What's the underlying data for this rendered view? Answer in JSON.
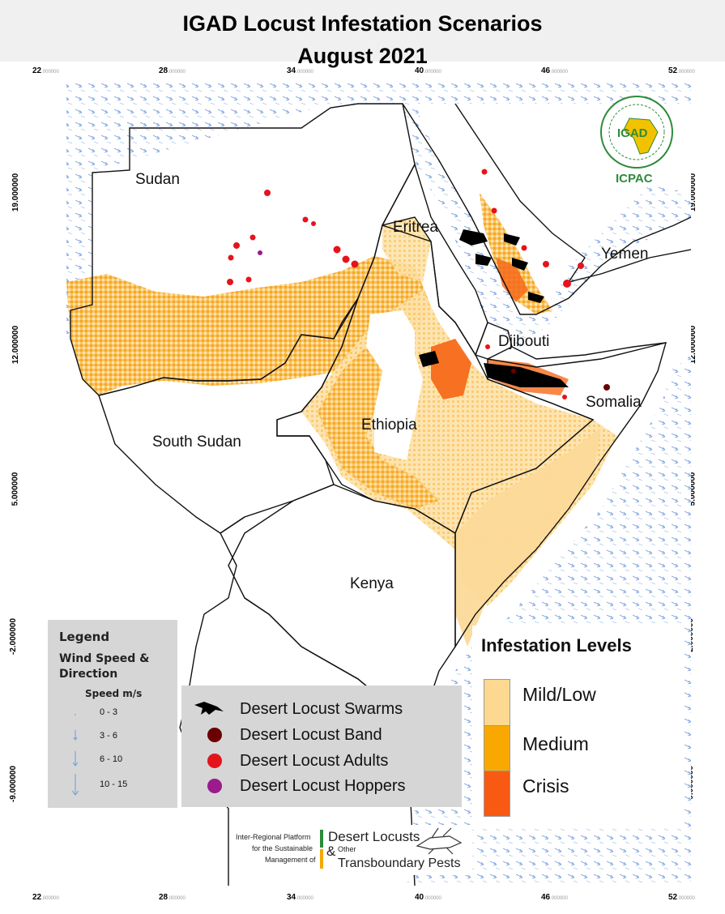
{
  "title": {
    "line1": "IGAD Locust Infestation Scenarios",
    "line2": "August 2021"
  },
  "axes": {
    "x_ticks": [
      "22",
      "28",
      "34",
      "40",
      "46",
      "52"
    ],
    "x_tick_suffix": ".000000",
    "y_ticks": [
      "19",
      "12",
      "5",
      "-2",
      "-9"
    ],
    "y_tick_suffix": ".000000"
  },
  "countries": [
    "Sudan",
    "Eritrea",
    "Yemen",
    "Djibouti",
    "Somalia",
    "Ethiopia",
    "South Sudan",
    "Kenya"
  ],
  "legend_wind": {
    "title": "Legend",
    "subtitle_line1": "Wind Speed &",
    "subtitle_line2": "Direction",
    "speed_label": "Speed m/s",
    "ranges": [
      "0 - 3",
      "3 - 6",
      "6 - 10",
      "10 - 15"
    ]
  },
  "legend_locust": {
    "items": [
      {
        "label": "Desert Locust Swarms",
        "symbol": "locust-icon",
        "color": "#000000"
      },
      {
        "label": "Desert Locust Band",
        "symbol": "circle",
        "color": "#6b0000"
      },
      {
        "label": "Desert Locust Adults",
        "symbol": "circle",
        "color": "#e5141b"
      },
      {
        "label": "Desert Locust Hoppers",
        "symbol": "circle",
        "color": "#9b1a8c"
      }
    ]
  },
  "legend_infestation": {
    "title": "Infestation Levels",
    "levels": [
      {
        "label": "Mild/Low",
        "color": "#fdd890"
      },
      {
        "label": "Medium",
        "color": "#f9a800"
      },
      {
        "label": "Crisis",
        "color": "#f85a14"
      }
    ]
  },
  "logo": {
    "line1": "IGAD",
    "line2": "ICPAC"
  },
  "footer": {
    "line1": "Inter-Regional Platform",
    "line2": "for the Sustainable",
    "line3": "Management of",
    "brand1": "Desert Locusts",
    "amp": "&",
    "other": "Other",
    "brand2": "Transboundary Pests"
  }
}
